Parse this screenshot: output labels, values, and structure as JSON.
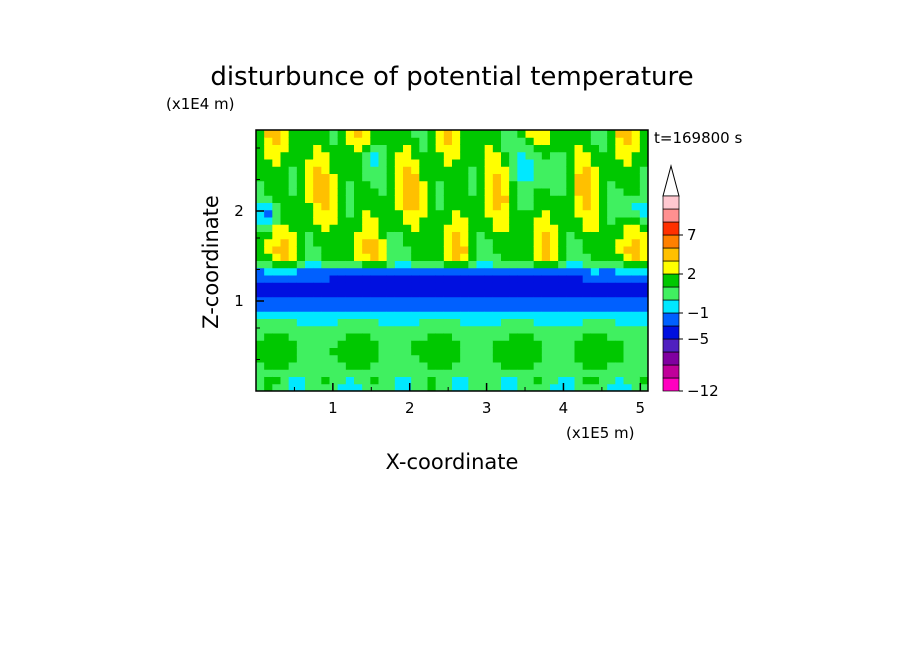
{
  "chart_data": {
    "type": "heatmap",
    "title": "disturbunce of potential temperature",
    "xlabel": "X-coordinate",
    "ylabel": "Z-coordinate",
    "x_unit": "(x1E5 m)",
    "y_unit": "(x1E4 m)",
    "time_label": "t=169800 s",
    "xlim": [
      0,
      5.1
    ],
    "ylim": [
      0,
      2.9
    ],
    "x_ticks": [
      1,
      2,
      3,
      4,
      5
    ],
    "y_ticks": [
      1,
      2
    ],
    "x_tick_labels": [
      "1",
      "2",
      "3",
      "4",
      "5"
    ],
    "y_tick_labels": [
      "1",
      "2"
    ],
    "colorbar": {
      "levels": [
        -12,
        -10,
        -8,
        -6,
        -5,
        -3,
        -1,
        0,
        1,
        2,
        3,
        5,
        7,
        9,
        11
      ],
      "colors": [
        "#ff00c0",
        "#c0009a",
        "#8000a0",
        "#5020c0",
        "#0010e0",
        "#0060ff",
        "#00e8ff",
        "#40f060",
        "#00c800",
        "#ffff00",
        "#ffc000",
        "#ff8000",
        "#ff3000",
        "#ff9090",
        "#ffc8d0"
      ],
      "labeled_ticks": [
        {
          "level": -12,
          "label": "−12"
        },
        {
          "level": -5,
          "label": "−5"
        },
        {
          "level": -1,
          "label": "−1"
        },
        {
          "level": 2,
          "label": "2"
        },
        {
          "level": 7,
          "label": "7"
        }
      ]
    },
    "field_features": [
      {
        "feature": "cold layer",
        "z_range": [
          0.85,
          1.45
        ],
        "value": -2,
        "x_range": [
          0,
          5.1
        ]
      },
      {
        "feature": "strong cold band",
        "z_center": 1.3,
        "value": -4,
        "x_range": [
          1.0,
          4.2
        ]
      },
      {
        "feature": "warm layer",
        "z_range": [
          0.0,
          0.8
        ],
        "value": 1.5,
        "x_range": [
          0,
          5.1
        ]
      },
      {
        "feature": "upper warm pattern",
        "z_range": [
          1.5,
          2.9
        ],
        "value": 2.5,
        "x_range": [
          0,
          5.1
        ]
      }
    ],
    "grid": false
  }
}
